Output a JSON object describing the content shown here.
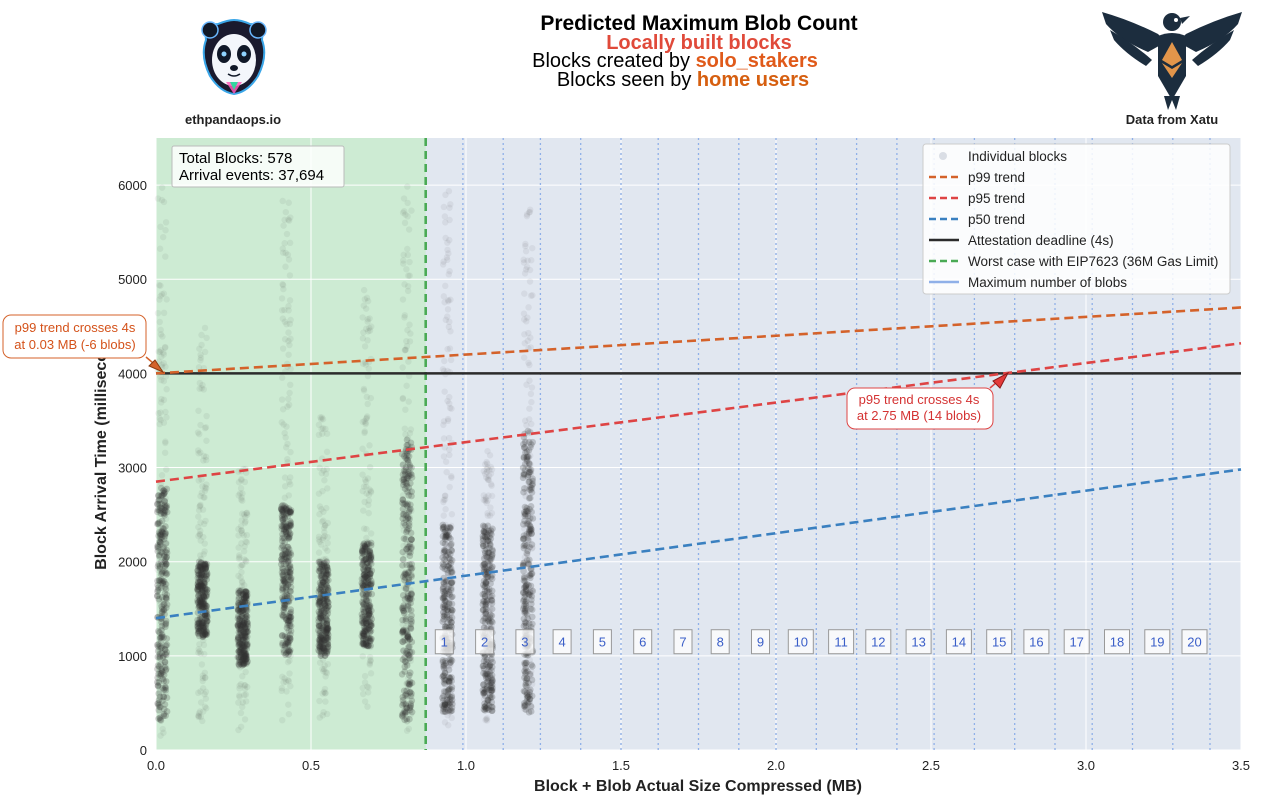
{
  "header": {
    "title": "Predicted Maximum Blob Count",
    "line2": "Locally built blocks",
    "line3_prefix": "Blocks created by ",
    "line3_highlight": "solo_stakers",
    "line4_prefix": "Blocks seen by ",
    "line4_highlight": "home users",
    "left_logo_caption": "ethpandaops.io",
    "right_logo_caption": "Data from Xatu"
  },
  "colors": {
    "plot_bg": "#e1e7f0",
    "green_region": "#cdebd3",
    "p99": "#d4622a",
    "p95": "#de4444",
    "p50": "#3a80c0",
    "deadline": "#2b2b2b",
    "worst_case": "#4aaa55",
    "blob_line": "#8fb0e8",
    "dots": "#333333",
    "line2_title": "#e04a3a",
    "highlight": "#e05a1a",
    "line4_highlight": "#d65f10"
  },
  "stats_box": {
    "total_blocks": "Total Blocks: 578",
    "arrival_events": "Arrival events: 37,694"
  },
  "annotations": {
    "p99": [
      "p99 trend crosses 4s",
      "at 0.03 MB (-6 blobs)"
    ],
    "p95": [
      "p95 trend crosses 4s",
      "at 2.75 MB (14 blobs)"
    ]
  },
  "chart_data": {
    "type": "scatter",
    "xlabel": "Block + Blob Actual Size Compressed (MB)",
    "ylabel": "Block Arrival Time (milliseconds)",
    "xlim": [
      0,
      3.5
    ],
    "ylim": [
      0,
      6500
    ],
    "x_ticks": [
      0.0,
      0.5,
      1.0,
      1.5,
      2.0,
      2.5,
      3.0,
      3.5
    ],
    "x_tick_labels": [
      "0.0",
      "0.5",
      "1.0",
      "1.5",
      "2.0",
      "2.5",
      "3.0",
      "3.5"
    ],
    "y_ticks": [
      0,
      1000,
      2000,
      3000,
      4000,
      5000,
      6000
    ],
    "y_tick_labels": [
      "0",
      "1000",
      "2000",
      "3000",
      "4000",
      "5000",
      "6000"
    ],
    "grid": true,
    "legend_position": "top-right",
    "legend": [
      {
        "label": "Individual blocks",
        "kind": "dot"
      },
      {
        "label": "p99 trend",
        "kind": "p99"
      },
      {
        "label": "p95 trend",
        "kind": "p95"
      },
      {
        "label": "p50 trend",
        "kind": "p50"
      },
      {
        "label": "Attestation deadline (4s)",
        "kind": "deadline"
      },
      {
        "label": "Worst case with EIP7623 (36M Gas Limit)",
        "kind": "worst"
      },
      {
        "label": "Maximum number of blobs",
        "kind": "blob"
      }
    ],
    "trends": [
      {
        "name": "p99 trend",
        "x": [
          0,
          3.5
        ],
        "y": [
          4000,
          4700
        ]
      },
      {
        "name": "p95 trend",
        "x": [
          0,
          3.5
        ],
        "y": [
          2850,
          4320
        ]
      },
      {
        "name": "p50 trend",
        "x": [
          0,
          3.5
        ],
        "y": [
          1400,
          2980
        ]
      }
    ],
    "attestation_deadline_ms": 4000,
    "worst_case_eip7623_mb": 0.87,
    "green_region_x": [
      0,
      0.87
    ],
    "blob_boundaries_mb": [
      0.99,
      1.12,
      1.24,
      1.37,
      1.5,
      1.62,
      1.75,
      1.88,
      2.0,
      2.13,
      2.26,
      2.39,
      2.51,
      2.64,
      2.77,
      2.9,
      3.02,
      3.15,
      3.28,
      3.4
    ],
    "blob_label_positions_mb": [
      0.93,
      1.06,
      1.19,
      1.31,
      1.44,
      1.57,
      1.7,
      1.82,
      1.95,
      2.08,
      2.21,
      2.33,
      2.46,
      2.59,
      2.72,
      2.84,
      2.97,
      3.1,
      3.23,
      3.35
    ],
    "blob_labels": [
      "1",
      "2",
      "3",
      "4",
      "5",
      "6",
      "7",
      "8",
      "9",
      "10",
      "11",
      "12",
      "13",
      "14",
      "15",
      "16",
      "17",
      "18",
      "19",
      "20"
    ],
    "blob_label_y_ms": 1150,
    "dot_clusters": [
      {
        "x": 0.02,
        "min": 100,
        "max": 6000,
        "dense_min": 300,
        "dense_max": 2800
      },
      {
        "x": 0.15,
        "min": 300,
        "max": 4500,
        "dense_min": 1200,
        "dense_max": 2000
      },
      {
        "x": 0.28,
        "min": 200,
        "max": 3000,
        "dense_min": 900,
        "dense_max": 1700
      },
      {
        "x": 0.42,
        "min": 300,
        "max": 5900,
        "dense_min": 1000,
        "dense_max": 2600
      },
      {
        "x": 0.54,
        "min": 300,
        "max": 3600,
        "dense_min": 1000,
        "dense_max": 2000
      },
      {
        "x": 0.68,
        "min": 400,
        "max": 4900,
        "dense_min": 1100,
        "dense_max": 2200
      },
      {
        "x": 0.81,
        "min": 200,
        "max": 6000,
        "dense_min": 300,
        "dense_max": 3300
      },
      {
        "x": 0.94,
        "min": 200,
        "max": 6000,
        "dense_min": 400,
        "dense_max": 2400
      },
      {
        "x": 1.07,
        "min": 300,
        "max": 3200,
        "dense_min": 400,
        "dense_max": 2400
      },
      {
        "x": 1.2,
        "min": 300,
        "max": 5800,
        "dense_min": 400,
        "dense_max": 3400
      }
    ]
  }
}
